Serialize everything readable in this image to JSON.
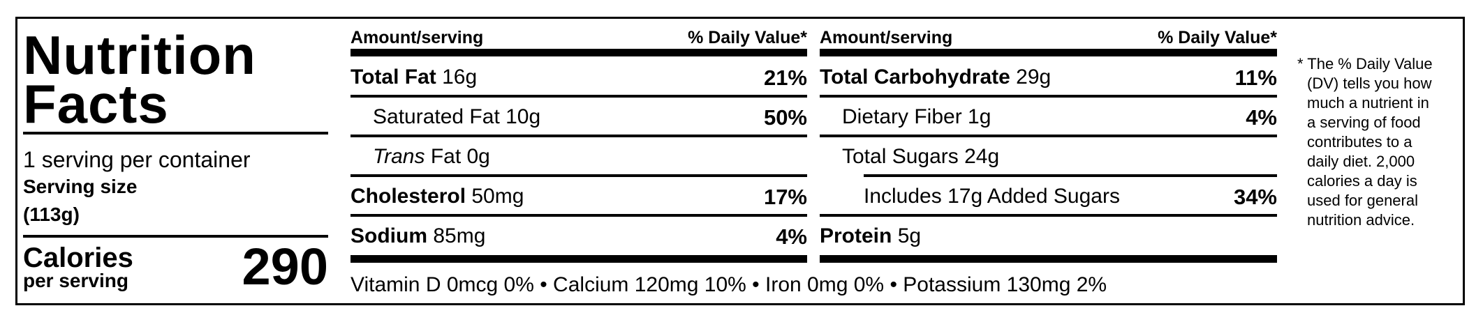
{
  "title_line1": "Nutrition",
  "title_line2": "Facts",
  "servings_per_container": "1 serving per container",
  "serving_size_label": "Serving size",
  "serving_size_value": "(113g)",
  "calories_label": "Calories",
  "calories_sub": "per serving",
  "calories_value": "290",
  "header": {
    "amount": "Amount/serving",
    "dv": "% Daily Value*"
  },
  "left_rows": [
    {
      "name": "Total Fat",
      "amount": "16g",
      "dv": "21%"
    },
    {
      "name": "Saturated Fat 10g",
      "dv": "50%"
    },
    {
      "name_italic": "Trans",
      "name": "Fat 0g"
    },
    {
      "name": "Cholesterol",
      "amount": "50mg",
      "dv": "17%"
    },
    {
      "name": "Sodium",
      "amount": "85mg",
      "dv": "4%"
    }
  ],
  "right_rows": [
    {
      "name": "Total Carbohydrate",
      "amount": "29g",
      "dv": "11%"
    },
    {
      "name": "Dietary Fiber 1g",
      "dv": "4%"
    },
    {
      "name": "Total Sugars 24g"
    },
    {
      "name": "Includes 17g Added Sugars",
      "dv": "34%"
    },
    {
      "name": "Protein",
      "amount": "5g"
    }
  ],
  "vitamins": "Vitamin D 0mcg 0% • Calcium 120mg 10% • Iron 0mg 0% • Potassium 130mg 2%",
  "footnote_lines": [
    "* The % Daily Value",
    "(DV) tells you how",
    "much a nutrient in",
    "a serving of food",
    "contributes to a",
    "daily diet. 2,000",
    "calories a day is",
    "used for general",
    "nutrition advice."
  ]
}
